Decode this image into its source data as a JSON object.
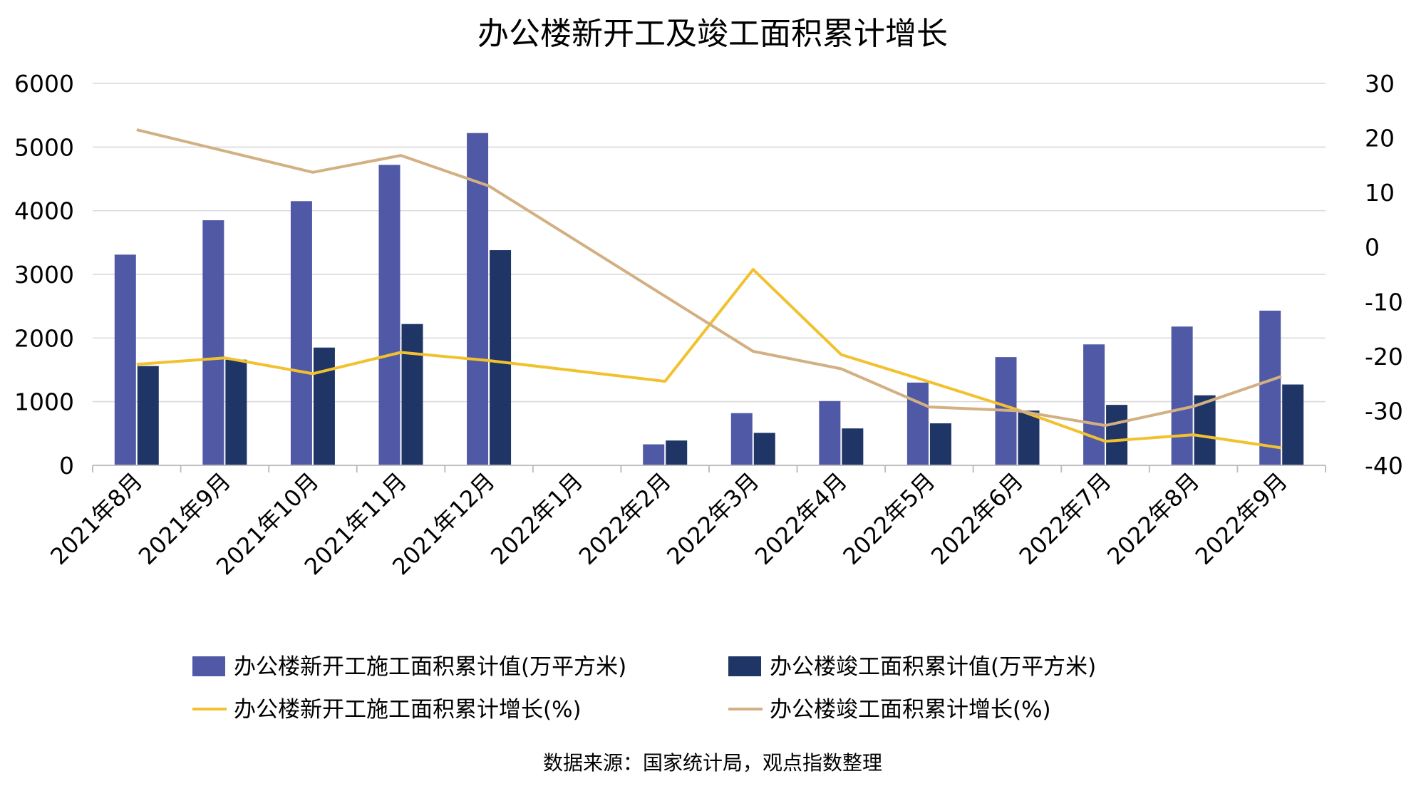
{
  "chart_data": {
    "type": "bar+line",
    "title": "办公楼新开工及竣工面积累计增长",
    "categories": [
      "2021年8月",
      "2021年9月",
      "2021年10月",
      "2021年11月",
      "2021年12月",
      "2022年1月",
      "2022年2月",
      "2022年3月",
      "2022年4月",
      "2022年5月",
      "2022年6月",
      "2022年7月",
      "2022年8月",
      "2022年9月"
    ],
    "y_left": {
      "min": 0,
      "max": 6000,
      "ticks": [
        "0",
        "1000",
        "2000",
        "3000",
        "4000",
        "5000",
        "6000"
      ]
    },
    "y_right": {
      "min": -40,
      "max": 30,
      "ticks": [
        "-40",
        "-30",
        "-20",
        "-10",
        "0",
        "10",
        "20",
        "30"
      ]
    },
    "grid": true,
    "legend_position": "bottom",
    "series": [
      {
        "name": "办公楼新开工施工面积累计值(万平方米)",
        "kind": "bar",
        "axis": "left",
        "color": "#5059a5",
        "values": [
          3310,
          3850,
          4150,
          4720,
          5220,
          null,
          330,
          820,
          1010,
          1300,
          1700,
          1900,
          2180,
          2430
        ]
      },
      {
        "name": "办公楼竣工面积累计值(万平方米)",
        "kind": "bar",
        "axis": "left",
        "color": "#1f3566",
        "values": [
          1560,
          1660,
          1850,
          2220,
          3380,
          null,
          390,
          510,
          580,
          660,
          860,
          950,
          1100,
          1270
        ]
      },
      {
        "name": "办公楼新开工施工面积累计增长(%)",
        "kind": "line",
        "axis": "right",
        "color": "#f2c12e",
        "values": [
          -21.5,
          -20.3,
          -23.2,
          -19.3,
          -20.8,
          null,
          -24.6,
          -4.1,
          -19.7,
          -24.7,
          -29.8,
          -35.6,
          -34.4,
          -36.8
        ]
      },
      {
        "name": "办公楼竣工面积累计增长(%)",
        "kind": "line",
        "axis": "right",
        "color": "#d2b083",
        "values": [
          21.5,
          null,
          13.7,
          16.8,
          11.2,
          null,
          null,
          -19.1,
          -22.3,
          -29.3,
          -30.0,
          -32.7,
          -29.2,
          -23.7
        ]
      }
    ],
    "source": "数据来源：国家统计局，观点指数整理"
  }
}
